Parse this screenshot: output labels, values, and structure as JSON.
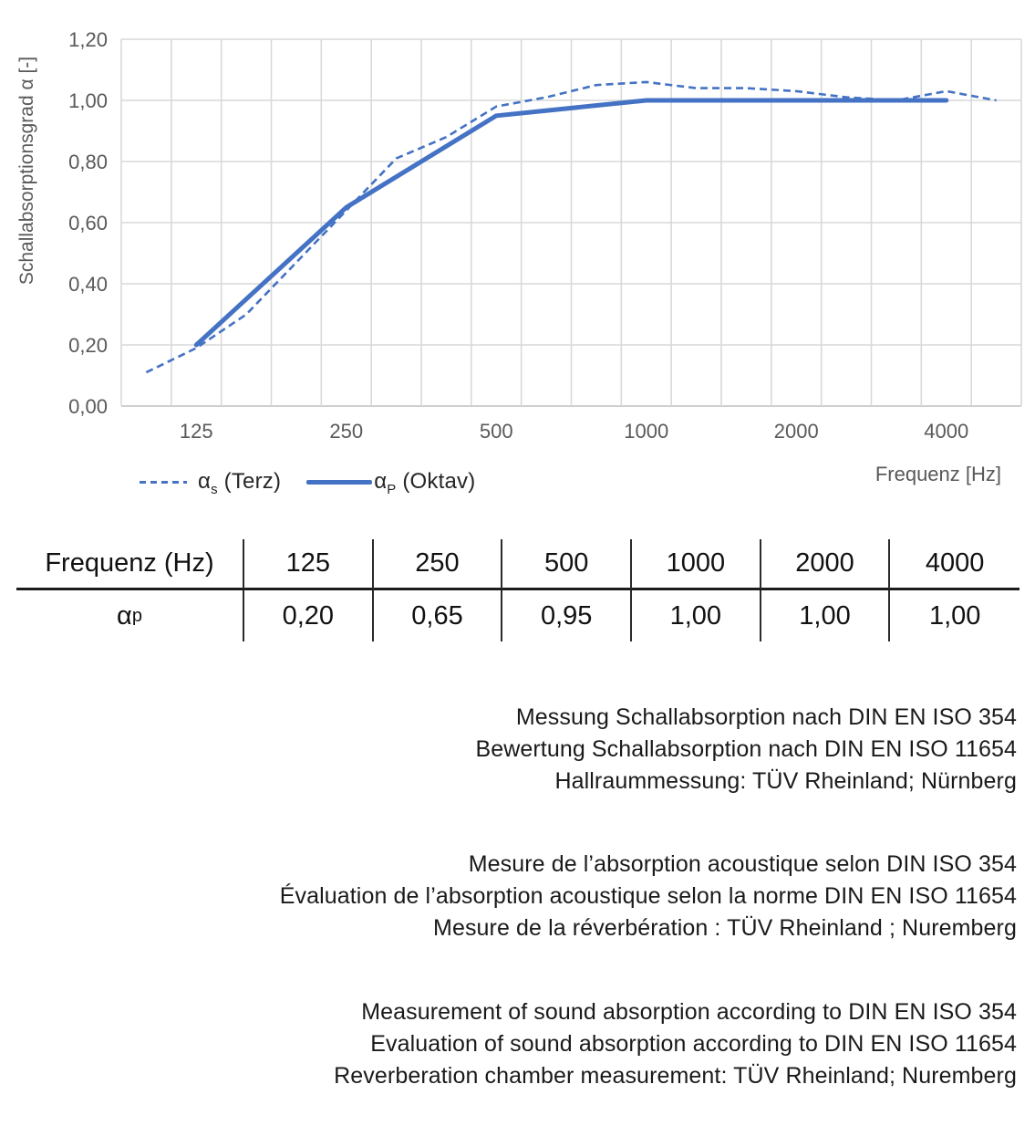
{
  "colors": {
    "series_blue": "#4472C4",
    "gridline": "#D9D9D9",
    "axis_line": "#BFBFBF",
    "axis_text": "#595959",
    "legend_text": "#262626",
    "body_text": "#1A1A1A"
  },
  "chart_data": {
    "type": "line",
    "x_axis_title": "Frequenz [Hz]",
    "y_axis_title": "Schallabsorptionsgrad α [-]",
    "x_scale": "third-octave category slots (logarithmic band spacing)",
    "ylim": [
      0,
      1.2
    ],
    "grid": true,
    "legend_position": "bottom-left",
    "categories": [
      100,
      125,
      160,
      200,
      250,
      315,
      400,
      500,
      630,
      800,
      1000,
      1250,
      1600,
      2000,
      2500,
      3150,
      4000,
      5000
    ],
    "x_ticks": [
      {
        "category": 125,
        "label": "125"
      },
      {
        "category": 250,
        "label": "250"
      },
      {
        "category": 500,
        "label": "500"
      },
      {
        "category": 1000,
        "label": "1000"
      },
      {
        "category": 2000,
        "label": "2000"
      },
      {
        "category": 4000,
        "label": "4000"
      }
    ],
    "y_ticks": [
      {
        "value": 0.0,
        "label": "0,00"
      },
      {
        "value": 0.2,
        "label": "0,20"
      },
      {
        "value": 0.4,
        "label": "0,40"
      },
      {
        "value": 0.6,
        "label": "0,60"
      },
      {
        "value": 0.8,
        "label": "0,80"
      },
      {
        "value": 1.0,
        "label": "1,00"
      },
      {
        "value": 1.2,
        "label": "1,20"
      }
    ],
    "series": [
      {
        "name": "αs (Terz)",
        "style": "dashed",
        "categories": [
          100,
          125,
          160,
          200,
          250,
          315,
          400,
          500,
          630,
          800,
          1000,
          1250,
          1600,
          2000,
          2500,
          3150,
          4000,
          5000
        ],
        "values": [
          0.11,
          0.19,
          0.3,
          0.47,
          0.64,
          0.81,
          0.88,
          0.98,
          1.01,
          1.05,
          1.06,
          1.04,
          1.04,
          1.03,
          1.01,
          1.0,
          1.03,
          1.0
        ]
      },
      {
        "name": "αP (Oktav)",
        "style": "solid",
        "categories": [
          125,
          250,
          500,
          1000,
          2000,
          4000
        ],
        "values": [
          0.2,
          0.65,
          0.95,
          1.0,
          1.0,
          1.0
        ]
      }
    ],
    "legend": [
      {
        "symbol": "α",
        "sub": "s",
        "rest": " (Terz)"
      },
      {
        "symbol": "α",
        "sub": "P",
        "rest": " (Oktav)"
      }
    ]
  },
  "table": {
    "header_label": "Frequenz (Hz)",
    "frequencies": [
      "125",
      "250",
      "500",
      "1000",
      "2000",
      "4000"
    ],
    "row_symbol": "α",
    "row_sub": "p",
    "values": [
      "0,20",
      "0,65",
      "0,95",
      "1,00",
      "1,00",
      "1,00"
    ]
  },
  "notes": {
    "german": [
      "Messung Schallabsorption nach DIN EN ISO 354",
      "Bewertung Schallabsorption nach DIN EN ISO 11654",
      "Hallraummessung: TÜV Rheinland; Nürnberg"
    ],
    "french": [
      "Mesure de l’absorption acoustique selon DIN ISO 354",
      "Évaluation de l’absorption acoustique selon la norme DIN EN ISO 11654",
      "Mesure de la réverbération : TÜV Rheinland ; Nuremberg"
    ],
    "english": [
      "Measurement of sound absorption according to DIN EN ISO 354",
      "Evaluation of sound absorption according to DIN EN ISO 11654",
      "Reverberation chamber measurement: TÜV Rheinland; Nuremberg"
    ]
  }
}
